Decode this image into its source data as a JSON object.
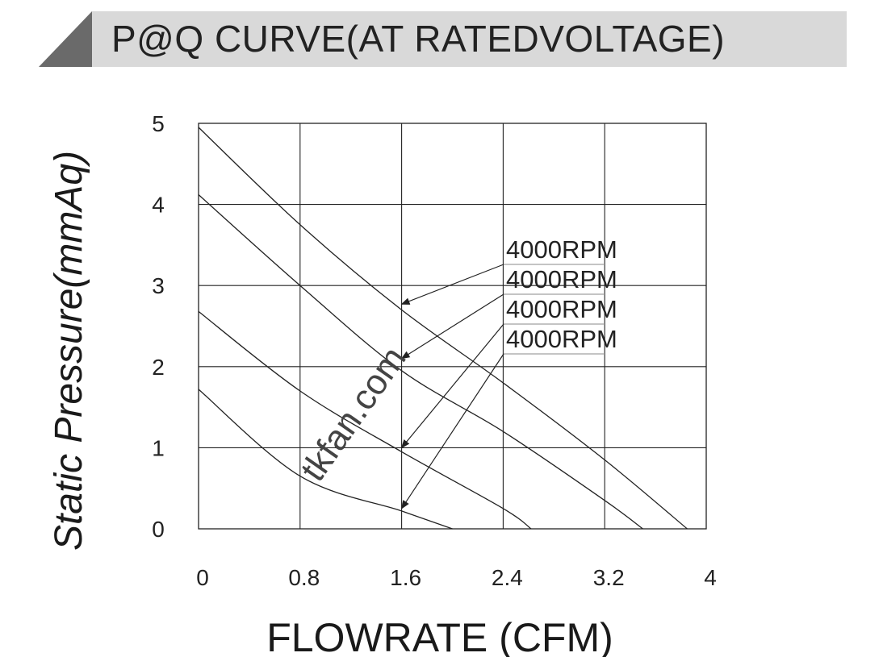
{
  "header": {
    "title": "P@Q CURVE(AT RATEDVOLTAGE)"
  },
  "colors": {
    "header_bg": "#d9d9d9",
    "header_accent": "#666666",
    "grid": "#222222",
    "curve": "#222222"
  },
  "watermark": "tkfan.com",
  "chart_data": {
    "type": "line",
    "title": "P@Q CURVE(AT RATEDVOLTAGE)",
    "xlabel": "FLOWRATE (CFM)",
    "ylabel": "Static  Pressure(mmAq)",
    "xlim": [
      0,
      4
    ],
    "ylim": [
      0,
      5
    ],
    "x_ticks": [
      "0",
      "0.8",
      "1.6",
      "2.4",
      "3.2",
      "4"
    ],
    "y_ticks": [
      "0",
      "1",
      "2",
      "3",
      "4",
      "5"
    ],
    "grid": true,
    "series": [
      {
        "name": "4000RPM",
        "points": [
          [
            0,
            4.95
          ],
          [
            0.8,
            3.75
          ],
          [
            1.6,
            2.7
          ],
          [
            2.4,
            1.8
          ],
          [
            3.2,
            0.85
          ],
          [
            3.85,
            0
          ]
        ]
      },
      {
        "name": "4000RPM",
        "points": [
          [
            0,
            4.12
          ],
          [
            0.8,
            3.0
          ],
          [
            1.6,
            1.95
          ],
          [
            2.4,
            1.2
          ],
          [
            3.2,
            0.35
          ],
          [
            3.5,
            0
          ]
        ]
      },
      {
        "name": "4000RPM",
        "points": [
          [
            0,
            2.68
          ],
          [
            0.8,
            1.7
          ],
          [
            1.6,
            0.95
          ],
          [
            2.4,
            0.25
          ],
          [
            2.62,
            0
          ]
        ]
      },
      {
        "name": "4000RPM",
        "points": [
          [
            0,
            1.72
          ],
          [
            0.8,
            0.65
          ],
          [
            1.6,
            0.22
          ],
          [
            2.0,
            0
          ]
        ]
      }
    ],
    "annotations": [
      {
        "text": "4000RPM",
        "series": 0,
        "target": [
          1.6,
          2.77
        ]
      },
      {
        "text": "4000RPM",
        "series": 1,
        "target": [
          1.6,
          2.1
        ]
      },
      {
        "text": "4000RPM",
        "series": 2,
        "target": [
          1.6,
          1.0
        ]
      },
      {
        "text": "4000RPM",
        "series": 3,
        "target": [
          1.6,
          0.25
        ]
      }
    ]
  }
}
